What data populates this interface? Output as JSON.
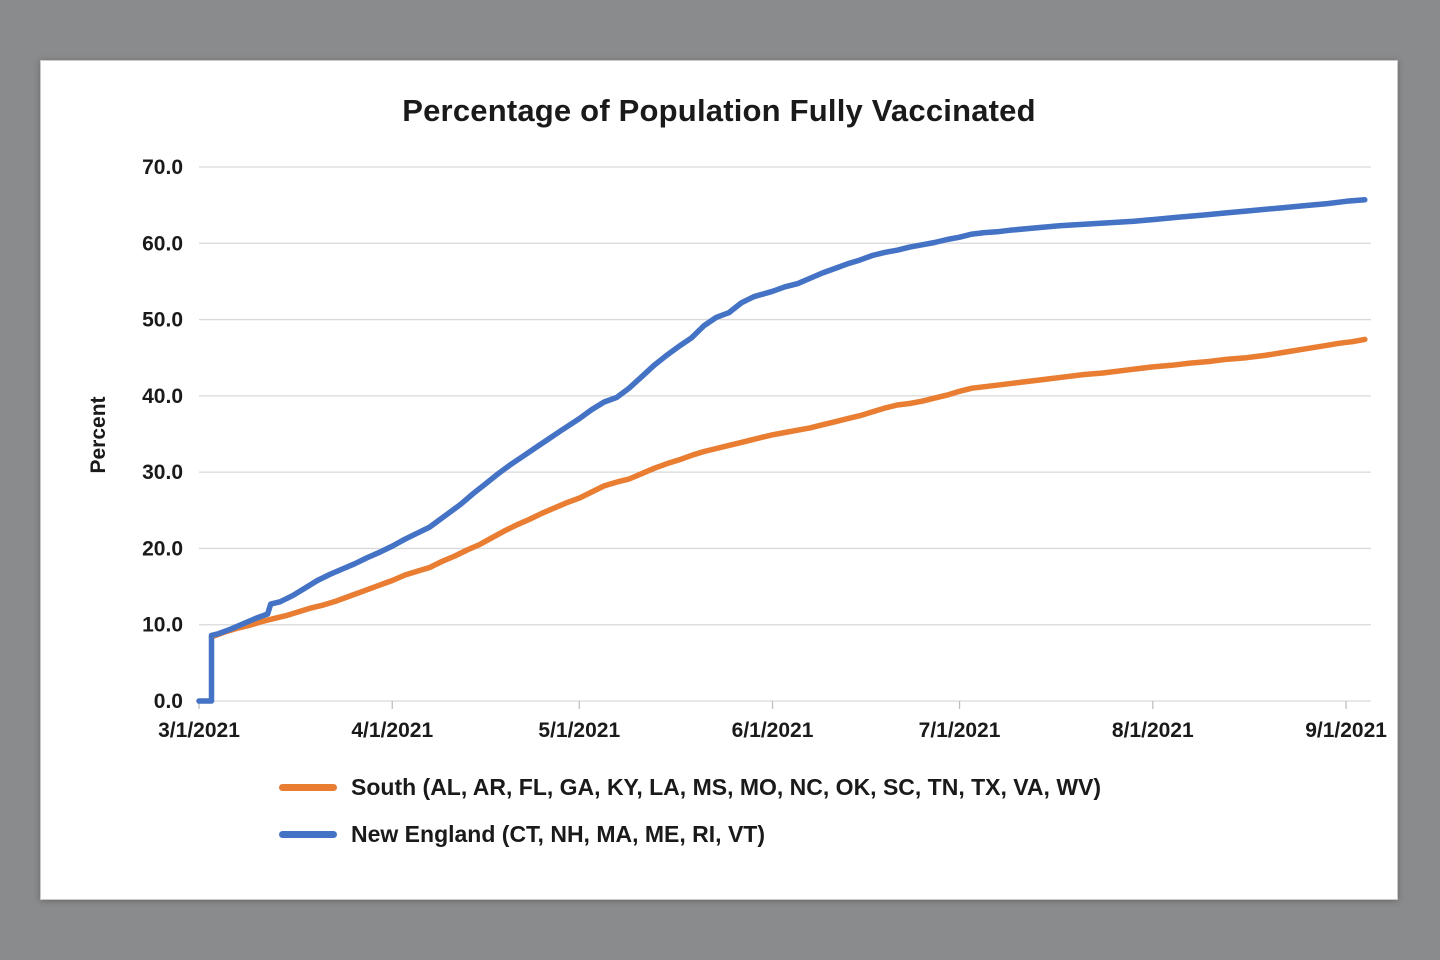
{
  "chart_data": {
    "type": "line",
    "title": "Percentage of Population Fully Vaccinated",
    "xlabel": "",
    "ylabel": "Percent",
    "ylim": [
      0,
      70
    ],
    "ytick_step": 10,
    "ytick_decimals": 1,
    "grid": true,
    "legend_position": "bottom-left",
    "x_unit": "days since 3/1/2021",
    "x_max": 188,
    "x_ticks": [
      {
        "day": 0,
        "label": "3/1/2021"
      },
      {
        "day": 31,
        "label": "4/1/2021"
      },
      {
        "day": 61,
        "label": "5/1/2021"
      },
      {
        "day": 92,
        "label": "6/1/2021"
      },
      {
        "day": 122,
        "label": "7/1/2021"
      },
      {
        "day": 153,
        "label": "8/1/2021"
      },
      {
        "day": 184,
        "label": "9/1/2021"
      }
    ],
    "colors": {
      "south": "#E97D32",
      "new_england": "#4472C4",
      "gridline": "#d9d9d9",
      "axis_tick": "#bfbfbf",
      "text": "#1a1a1a"
    },
    "series": [
      {
        "name": "South (AL, AR, FL, GA, KY, LA, MS, MO, NC, OK, SC, TN, TX, VA, WV)",
        "color": "#E97D32",
        "points": [
          [
            2,
            8.4
          ],
          [
            4,
            9.0
          ],
          [
            6,
            9.5
          ],
          [
            8,
            9.9
          ],
          [
            10,
            10.4
          ],
          [
            12,
            10.8
          ],
          [
            14,
            11.2
          ],
          [
            16,
            11.7
          ],
          [
            18,
            12.2
          ],
          [
            20,
            12.6
          ],
          [
            22,
            13.1
          ],
          [
            24,
            13.7
          ],
          [
            26,
            14.3
          ],
          [
            28,
            14.9
          ],
          [
            31,
            15.8
          ],
          [
            33,
            16.5
          ],
          [
            35,
            17.0
          ],
          [
            37,
            17.5
          ],
          [
            39,
            18.3
          ],
          [
            41,
            19.0
          ],
          [
            43,
            19.8
          ],
          [
            45,
            20.5
          ],
          [
            47,
            21.4
          ],
          [
            49,
            22.3
          ],
          [
            51,
            23.1
          ],
          [
            53,
            23.8
          ],
          [
            55,
            24.6
          ],
          [
            57,
            25.3
          ],
          [
            59,
            26.0
          ],
          [
            61,
            26.6
          ],
          [
            63,
            27.4
          ],
          [
            65,
            28.2
          ],
          [
            67,
            28.7
          ],
          [
            69,
            29.1
          ],
          [
            71,
            29.8
          ],
          [
            73,
            30.5
          ],
          [
            75,
            31.1
          ],
          [
            77,
            31.6
          ],
          [
            79,
            32.2
          ],
          [
            81,
            32.7
          ],
          [
            83,
            33.1
          ],
          [
            85,
            33.5
          ],
          [
            87,
            33.9
          ],
          [
            89,
            34.3
          ],
          [
            92,
            34.9
          ],
          [
            94,
            35.2
          ],
          [
            96,
            35.5
          ],
          [
            98,
            35.8
          ],
          [
            100,
            36.2
          ],
          [
            102,
            36.6
          ],
          [
            104,
            37.0
          ],
          [
            106,
            37.4
          ],
          [
            108,
            37.9
          ],
          [
            110,
            38.4
          ],
          [
            112,
            38.8
          ],
          [
            114,
            39.0
          ],
          [
            116,
            39.3
          ],
          [
            118,
            39.7
          ],
          [
            120,
            40.1
          ],
          [
            122,
            40.6
          ],
          [
            124,
            41.0
          ],
          [
            126,
            41.2
          ],
          [
            128,
            41.4
          ],
          [
            130,
            41.6
          ],
          [
            133,
            41.9
          ],
          [
            136,
            42.2
          ],
          [
            139,
            42.5
          ],
          [
            142,
            42.8
          ],
          [
            145,
            43.0
          ],
          [
            148,
            43.3
          ],
          [
            151,
            43.6
          ],
          [
            153,
            43.8
          ],
          [
            156,
            44.0
          ],
          [
            159,
            44.3
          ],
          [
            162,
            44.5
          ],
          [
            165,
            44.8
          ],
          [
            168,
            45.0
          ],
          [
            171,
            45.3
          ],
          [
            174,
            45.7
          ],
          [
            177,
            46.1
          ],
          [
            180,
            46.5
          ],
          [
            183,
            46.9
          ],
          [
            185,
            47.1
          ],
          [
            187,
            47.4
          ]
        ]
      },
      {
        "name": "New England (CT, NH, MA, ME, RI, VT)",
        "color": "#4472C4",
        "points": [
          [
            0,
            0.0
          ],
          [
            2,
            0.0
          ],
          [
            2,
            8.6
          ],
          [
            3,
            8.8
          ],
          [
            5,
            9.4
          ],
          [
            7,
            10.1
          ],
          [
            9,
            10.8
          ],
          [
            11,
            11.4
          ],
          [
            11.5,
            12.7
          ],
          [
            13,
            13.0
          ],
          [
            15,
            13.8
          ],
          [
            17,
            14.8
          ],
          [
            19,
            15.8
          ],
          [
            21,
            16.6
          ],
          [
            23,
            17.3
          ],
          [
            25,
            18.0
          ],
          [
            27,
            18.8
          ],
          [
            29,
            19.5
          ],
          [
            31,
            20.3
          ],
          [
            33,
            21.2
          ],
          [
            35,
            22.0
          ],
          [
            37,
            22.8
          ],
          [
            38,
            23.4
          ],
          [
            40,
            24.6
          ],
          [
            42,
            25.8
          ],
          [
            44,
            27.2
          ],
          [
            46,
            28.5
          ],
          [
            48,
            29.8
          ],
          [
            50,
            31.0
          ],
          [
            52,
            32.1
          ],
          [
            54,
            33.2
          ],
          [
            56,
            34.3
          ],
          [
            58,
            35.4
          ],
          [
            61,
            37.0
          ],
          [
            63,
            38.2
          ],
          [
            65,
            39.2
          ],
          [
            67,
            39.8
          ],
          [
            69,
            41.0
          ],
          [
            71,
            42.5
          ],
          [
            73,
            44.0
          ],
          [
            75,
            45.3
          ],
          [
            77,
            46.5
          ],
          [
            79,
            47.6
          ],
          [
            81,
            49.2
          ],
          [
            83,
            50.3
          ],
          [
            85,
            50.9
          ],
          [
            87,
            52.2
          ],
          [
            89,
            53.0
          ],
          [
            92,
            53.7
          ],
          [
            94,
            54.3
          ],
          [
            96,
            54.7
          ],
          [
            98,
            55.4
          ],
          [
            100,
            56.1
          ],
          [
            102,
            56.7
          ],
          [
            104,
            57.3
          ],
          [
            106,
            57.8
          ],
          [
            108,
            58.4
          ],
          [
            110,
            58.8
          ],
          [
            112,
            59.1
          ],
          [
            114,
            59.5
          ],
          [
            116,
            59.8
          ],
          [
            118,
            60.1
          ],
          [
            120,
            60.5
          ],
          [
            122,
            60.8
          ],
          [
            124,
            61.2
          ],
          [
            126,
            61.4
          ],
          [
            128,
            61.5
          ],
          [
            130,
            61.7
          ],
          [
            134,
            62.0
          ],
          [
            138,
            62.3
          ],
          [
            142,
            62.5
          ],
          [
            146,
            62.7
          ],
          [
            150,
            62.9
          ],
          [
            153,
            63.1
          ],
          [
            157,
            63.4
          ],
          [
            161,
            63.7
          ],
          [
            165,
            64.0
          ],
          [
            169,
            64.3
          ],
          [
            173,
            64.6
          ],
          [
            177,
            64.9
          ],
          [
            181,
            65.2
          ],
          [
            184,
            65.5
          ],
          [
            187,
            65.7
          ]
        ]
      }
    ]
  }
}
